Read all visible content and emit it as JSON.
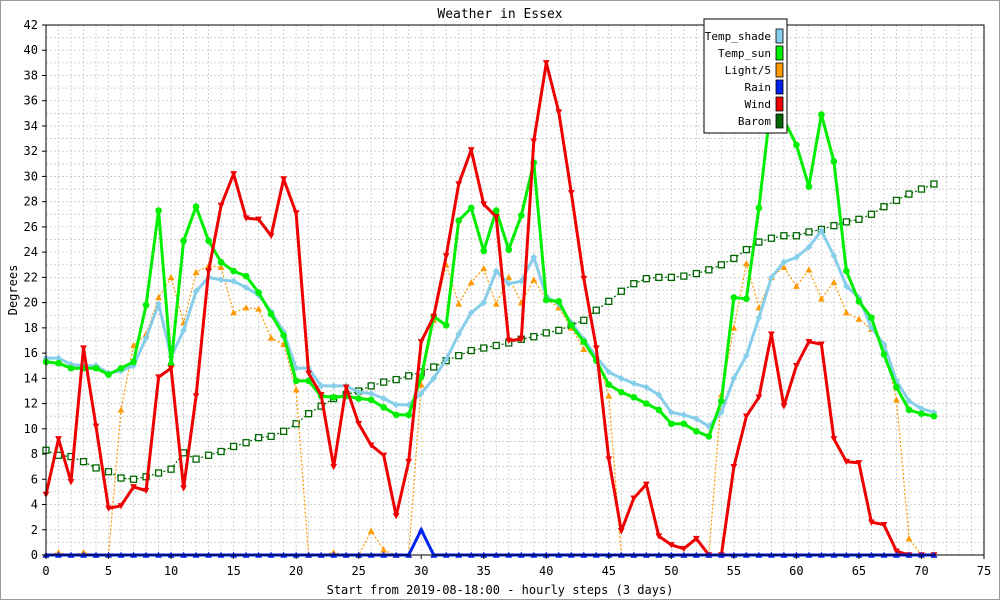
{
  "chart_data": {
    "type": "line",
    "title": "Weather in Essex",
    "xlabel": "Start from 2019-08-18:00 - hourly steps (3 days)",
    "ylabel": "Degrees",
    "xlim": [
      0,
      75
    ],
    "ylim": [
      0,
      42
    ],
    "x_ticks": [
      0,
      5,
      10,
      15,
      20,
      25,
      30,
      35,
      40,
      45,
      50,
      55,
      60,
      65,
      70,
      75
    ],
    "y_ticks": [
      0,
      2,
      4,
      6,
      8,
      10,
      12,
      14,
      16,
      18,
      20,
      22,
      24,
      26,
      28,
      30,
      32,
      34,
      36,
      38,
      40,
      42
    ],
    "grid": true,
    "legend_position": "top-right",
    "x": [
      0,
      1,
      2,
      3,
      4,
      5,
      6,
      7,
      8,
      9,
      10,
      11,
      12,
      13,
      14,
      15,
      16,
      17,
      18,
      19,
      20,
      21,
      22,
      23,
      24,
      25,
      26,
      27,
      28,
      29,
      30,
      31,
      32,
      33,
      34,
      35,
      36,
      37,
      38,
      39,
      40,
      41,
      42,
      43,
      44,
      45,
      46,
      47,
      48,
      49,
      50,
      51,
      52,
      53,
      54,
      55,
      56,
      57,
      58,
      59,
      60,
      61,
      62,
      63,
      64,
      65,
      66,
      67,
      68,
      69,
      70,
      71
    ],
    "series": [
      {
        "name": "Temp_shade",
        "color": "#87ceeb",
        "marker": "diamond",
        "values": [
          15.6,
          15.6,
          15.1,
          15.0,
          15.0,
          14.4,
          14.6,
          15.0,
          17.2,
          19.9,
          15.7,
          17.8,
          20.9,
          22.0,
          21.8,
          21.7,
          21.2,
          20.6,
          19.3,
          17.7,
          14.8,
          14.8,
          13.4,
          13.4,
          13.4,
          12.9,
          12.8,
          12.4,
          11.9,
          11.9,
          12.8,
          14.0,
          15.5,
          17.5,
          19.2,
          20.0,
          22.5,
          21.5,
          21.7,
          23.6,
          20.5,
          19.9,
          18.4,
          17.1,
          15.7,
          14.5,
          14.0,
          13.6,
          13.3,
          12.7,
          11.3,
          11.1,
          10.8,
          10.2,
          11.3,
          14.0,
          15.8,
          18.8,
          22.0,
          23.2,
          23.6,
          24.4,
          25.7,
          23.7,
          21.3,
          20.4,
          18.0,
          16.7,
          13.8,
          12.2,
          11.6,
          11.3
        ]
      },
      {
        "name": "Temp_sun",
        "color": "#00ee00",
        "marker": "circle",
        "values": [
          15.3,
          15.2,
          14.8,
          14.8,
          14.8,
          14.3,
          14.8,
          15.3,
          19.8,
          27.3,
          15.1,
          24.9,
          27.6,
          24.9,
          23.2,
          22.5,
          22.1,
          20.8,
          19.1,
          17.4,
          13.8,
          13.8,
          12.6,
          12.5,
          12.6,
          12.4,
          12.3,
          11.7,
          11.1,
          11.1,
          14.1,
          18.9,
          18.2,
          26.5,
          27.5,
          24.1,
          27.3,
          24.2,
          26.9,
          31.1,
          20.2,
          20.1,
          18.2,
          16.9,
          15.4,
          13.5,
          12.9,
          12.5,
          12.0,
          11.5,
          10.4,
          10.4,
          9.8,
          9.4,
          12.2,
          20.4,
          20.3,
          27.5,
          36.0,
          34.5,
          32.5,
          29.2,
          34.9,
          31.2,
          22.5,
          20.1,
          18.8,
          15.9,
          13.3,
          11.5,
          11.2,
          11.0
        ]
      },
      {
        "name": "Light/5",
        "color": "#ff9900",
        "marker": "triangle",
        "values": [
          0,
          0.2,
          0,
          0.2,
          0,
          0,
          11.5,
          16.6,
          17.5,
          20.4,
          22.0,
          18.4,
          22.4,
          22.9,
          22.8,
          19.2,
          19.6,
          19.5,
          17.2,
          16.7,
          13.1,
          0,
          0,
          0.2,
          0,
          0,
          1.9,
          0.4,
          0,
          0,
          13.5,
          18.6,
          23.0,
          19.9,
          21.6,
          22.7,
          19.9,
          22.0,
          20.0,
          21.8,
          20.3,
          19.6,
          18.0,
          16.3,
          15.8,
          12.6,
          0,
          0,
          0,
          0,
          0,
          0,
          0,
          0,
          12.7,
          18.0,
          23.1,
          19.6,
          22.0,
          22.8,
          21.3,
          22.6,
          20.3,
          21.6,
          19.2,
          18.7,
          17.9,
          16.7,
          12.3,
          1.3,
          0,
          0
        ]
      },
      {
        "name": "Rain",
        "color": "#0022ee",
        "marker": "triangle",
        "values": [
          0,
          0,
          0,
          0,
          0,
          0,
          0,
          0,
          0,
          0,
          0,
          0,
          0,
          0,
          0,
          0,
          0,
          0,
          0,
          0,
          0,
          0,
          0,
          0,
          0,
          0,
          0,
          0,
          0,
          0,
          2.0,
          0,
          0,
          0,
          0,
          0,
          0,
          0,
          0,
          0,
          0,
          0,
          0,
          0,
          0,
          0,
          0,
          0,
          0,
          0,
          0,
          0,
          0,
          0,
          0,
          0,
          0,
          0,
          0,
          0,
          0,
          0,
          0,
          0,
          0,
          0,
          0,
          0,
          0,
          0,
          0,
          0
        ]
      },
      {
        "name": "Wind",
        "color": "#ee0000",
        "marker": "triangle-down",
        "values": [
          4.8,
          9.2,
          5.8,
          16.4,
          10.2,
          3.7,
          3.9,
          5.4,
          5.1,
          14.1,
          14.8,
          5.3,
          12.6,
          22.5,
          27.7,
          30.2,
          26.7,
          26.6,
          25.3,
          29.8,
          27.1,
          14.4,
          12.7,
          7.0,
          13.3,
          10.4,
          8.7,
          7.9,
          3.1,
          7.4,
          16.9,
          18.9,
          23.7,
          29.4,
          32.1,
          27.8,
          26.8,
          17.0,
          17.1,
          32.8,
          39.0,
          35.1,
          28.7,
          21.9,
          16.4,
          7.6,
          1.9,
          4.5,
          5.6,
          1.5,
          0.8,
          0.5,
          1.3,
          0,
          0,
          7.0,
          11.0,
          12.5,
          17.5,
          11.8,
          15.0,
          16.9,
          16.7,
          9.2,
          7.4,
          7.3,
          2.6,
          2.4,
          0.3,
          0,
          0,
          0
        ]
      },
      {
        "name": "Barom",
        "color": "#006600",
        "marker": "square",
        "values": [
          8.3,
          7.9,
          7.8,
          7.4,
          6.9,
          6.6,
          6.1,
          6.0,
          6.2,
          6.5,
          6.8,
          8.1,
          7.6,
          7.9,
          8.2,
          8.6,
          8.9,
          9.3,
          9.4,
          9.8,
          10.4,
          11.2,
          11.8,
          12.4,
          12.7,
          13.0,
          13.4,
          13.7,
          13.9,
          14.2,
          14.5,
          14.9,
          15.4,
          15.8,
          16.2,
          16.4,
          16.6,
          16.8,
          17.1,
          17.3,
          17.6,
          17.8,
          18.2,
          18.6,
          19.4,
          20.1,
          20.9,
          21.5,
          21.9,
          22.0,
          22.0,
          22.1,
          22.3,
          22.6,
          23.0,
          23.5,
          24.2,
          24.8,
          25.1,
          25.3,
          25.3,
          25.6,
          25.8,
          26.1,
          26.4,
          26.6,
          27.0,
          27.6,
          28.1,
          28.6,
          29.0,
          29.4
        ]
      }
    ]
  }
}
